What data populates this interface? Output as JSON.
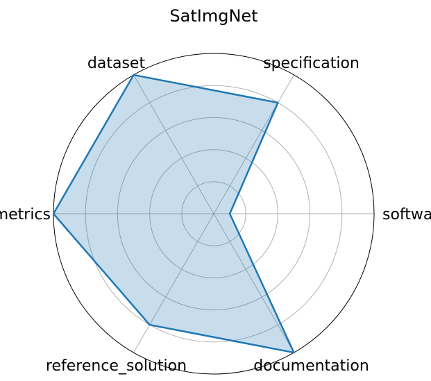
{
  "chart_data": {
    "type": "radar",
    "title": "SatImgNet",
    "categories": [
      "software",
      "specification",
      "dataset",
      "metrics",
      "reference_solution",
      "documentation"
    ],
    "series": [
      {
        "values": [
          0.1,
          0.8,
          1.0,
          1.0,
          0.8,
          1.0
        ],
        "color": "#1f77b4",
        "fill_color": "#1f77b4",
        "fill_opacity": 0.25
      }
    ],
    "rlim": [
      0,
      1
    ],
    "rticks": [
      0.2,
      0.4,
      0.6,
      0.8
    ],
    "grid": true,
    "grid_color": "#b0b0b0",
    "outline_color": "#000000"
  }
}
